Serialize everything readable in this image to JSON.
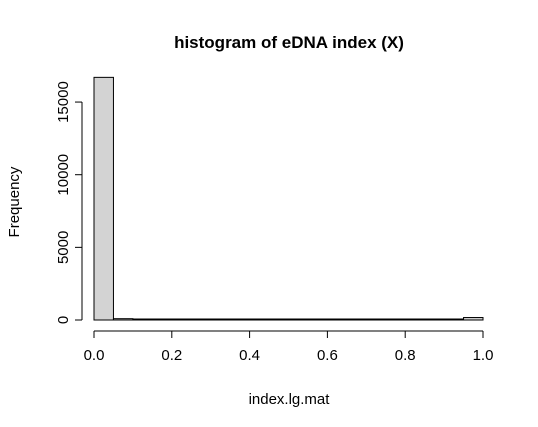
{
  "chart_data": {
    "type": "bar",
    "title": "histogram of eDNA index (X)",
    "xlabel": "index.lg.mat",
    "ylabel": "Frequency",
    "xlim": [
      0,
      1
    ],
    "ylim": [
      0,
      17000
    ],
    "x_ticks": [
      0.0,
      0.2,
      0.4,
      0.6,
      0.8,
      1.0
    ],
    "x_tick_labels": [
      "0.0",
      "0.2",
      "0.4",
      "0.6",
      "0.8",
      "1.0"
    ],
    "y_ticks": [
      0,
      5000,
      10000,
      15000
    ],
    "y_tick_labels": [
      "0",
      "5000",
      "10000",
      "15000"
    ],
    "bins": [
      {
        "x0": 0.0,
        "x1": 0.05,
        "count": 16700
      },
      {
        "x0": 0.05,
        "x1": 0.1,
        "count": 90
      },
      {
        "x0": 0.1,
        "x1": 0.15,
        "count": 30
      },
      {
        "x0": 0.15,
        "x1": 0.2,
        "count": 20
      },
      {
        "x0": 0.2,
        "x1": 0.25,
        "count": 15
      },
      {
        "x0": 0.25,
        "x1": 0.3,
        "count": 12
      },
      {
        "x0": 0.3,
        "x1": 0.35,
        "count": 10
      },
      {
        "x0": 0.35,
        "x1": 0.4,
        "count": 10
      },
      {
        "x0": 0.4,
        "x1": 0.45,
        "count": 8
      },
      {
        "x0": 0.45,
        "x1": 0.5,
        "count": 8
      },
      {
        "x0": 0.5,
        "x1": 0.55,
        "count": 8
      },
      {
        "x0": 0.55,
        "x1": 0.6,
        "count": 8
      },
      {
        "x0": 0.6,
        "x1": 0.65,
        "count": 8
      },
      {
        "x0": 0.65,
        "x1": 0.7,
        "count": 8
      },
      {
        "x0": 0.7,
        "x1": 0.75,
        "count": 8
      },
      {
        "x0": 0.75,
        "x1": 0.8,
        "count": 8
      },
      {
        "x0": 0.8,
        "x1": 0.85,
        "count": 10
      },
      {
        "x0": 0.85,
        "x1": 0.9,
        "count": 10
      },
      {
        "x0": 0.9,
        "x1": 0.95,
        "count": 15
      },
      {
        "x0": 0.95,
        "x1": 1.0,
        "count": 170
      }
    ],
    "bar_fill": "#d3d3d3",
    "bar_stroke": "#000000",
    "grid": false
  }
}
